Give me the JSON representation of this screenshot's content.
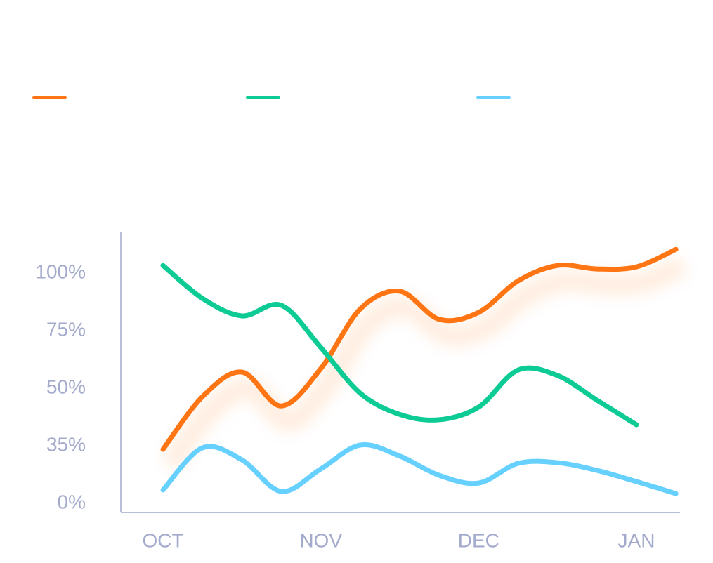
{
  "chart_data": {
    "type": "line",
    "categories": [
      "OCT",
      null,
      null,
      null,
      "NOV",
      null,
      null,
      null,
      "DEC",
      null,
      null,
      null,
      "JAN",
      null
    ],
    "series": [
      {
        "color": "#ff7514",
        "values": [
          32.4,
          47.6,
          56.7,
          45.2,
          58.2,
          84.1,
          91.8,
          79.6,
          82.6,
          96.3,
          103,
          101.5,
          102.4,
          110
        ]
      },
      {
        "color": "#0ccb94",
        "values": [
          103,
          88.7,
          81.1,
          85.7,
          67.4,
          48.5,
          43,
          41.6,
          44.9,
          57.6,
          55.2,
          46.7,
          40.3,
          null
        ]
      },
      {
        "color": "#66d0ff",
        "values": [
          7.7,
          33.3,
          26,
          6.8,
          20.5,
          35,
          28.3,
          16.6,
          11.9,
          23.9,
          24.3,
          19.6,
          12.8,
          5.5
        ]
      }
    ],
    "ylim": [
      -6,
      118
    ],
    "yticks": [
      {
        "value": 0,
        "label": "0%"
      },
      {
        "value": 35,
        "label": "35%"
      },
      {
        "value": 50,
        "label": "50%"
      },
      {
        "value": 75,
        "label": "75%"
      },
      {
        "value": 100,
        "label": "100%"
      }
    ]
  }
}
